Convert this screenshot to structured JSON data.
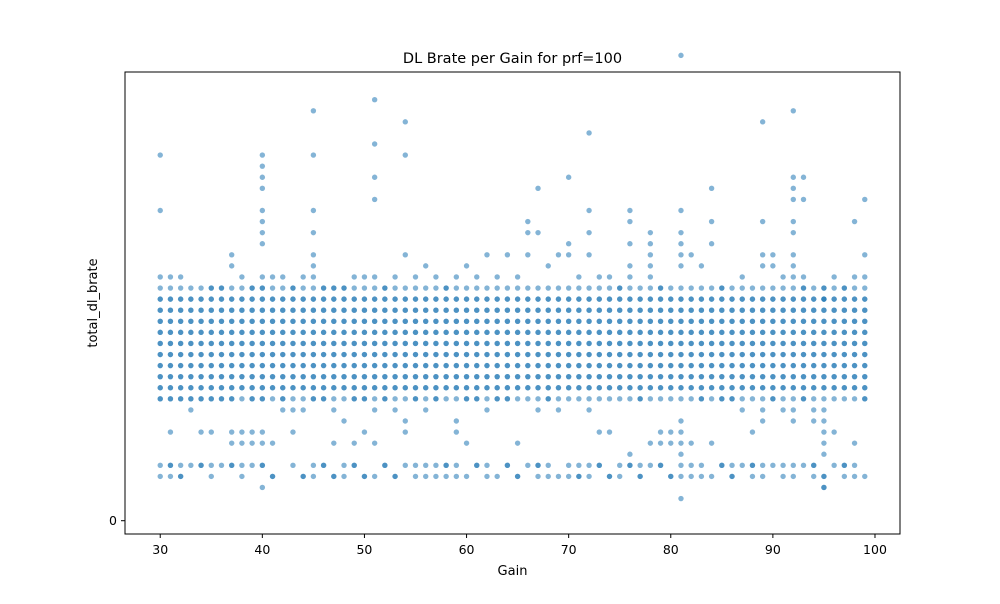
{
  "chart_data": {
    "type": "scatter",
    "title": "DL Brate per Gain for prf=100",
    "xlabel": "Gain",
    "ylabel": "total_dl_brate",
    "xlim": [
      26.55,
      102.45
    ],
    "ylim": [
      -0.12,
      4.05
    ],
    "x_ticks": [
      30,
      40,
      50,
      60,
      70,
      80,
      90,
      100
    ],
    "y_ticks": [
      0
    ],
    "grid": false,
    "legend": "none",
    "marker_color": "#1f77b4",
    "marker_alpha": 0.55,
    "gain_range": [
      30,
      99
    ],
    "dense_band_levels": [
      1.2,
      1.3,
      1.4,
      1.5,
      1.6,
      1.7,
      1.8,
      1.9,
      2.0
    ],
    "edge_band_levels": [
      1.1,
      2.1
    ],
    "common_low_levels": [
      0.4,
      0.5
    ],
    "points": [
      [
        30,
        2.2
      ],
      [
        30,
        3.3
      ],
      [
        30,
        2.8
      ],
      [
        30,
        0.4
      ],
      [
        30,
        0.5
      ],
      [
        30,
        1.1
      ],
      [
        31,
        0.8
      ],
      [
        31,
        2.2
      ],
      [
        31,
        1.1
      ],
      [
        31,
        0.4
      ],
      [
        31,
        0.5
      ],
      [
        32,
        2.2
      ],
      [
        32,
        0.4
      ],
      [
        32,
        0.5
      ],
      [
        32,
        1.1
      ],
      [
        33,
        1.0
      ],
      [
        33,
        1.1
      ],
      [
        33,
        0.5
      ],
      [
        34,
        0.8
      ],
      [
        34,
        0.5
      ],
      [
        34,
        1.1
      ],
      [
        35,
        0.8
      ],
      [
        35,
        0.5
      ],
      [
        35,
        1.1
      ],
      [
        35,
        2.1
      ],
      [
        36,
        0.5
      ],
      [
        36,
        1.1
      ],
      [
        36,
        2.1
      ],
      [
        37,
        2.3
      ],
      [
        37,
        2.4
      ],
      [
        37,
        0.7
      ],
      [
        37,
        0.8
      ],
      [
        37,
        0.5
      ],
      [
        37,
        1.1
      ],
      [
        38,
        0.8
      ],
      [
        38,
        0.7
      ],
      [
        38,
        2.2
      ],
      [
        38,
        0.5
      ],
      [
        39,
        0.7
      ],
      [
        39,
        0.8
      ],
      [
        39,
        0.5
      ],
      [
        39,
        1.1
      ],
      [
        39,
        2.1
      ],
      [
        40,
        3.3
      ],
      [
        40,
        3.2
      ],
      [
        40,
        3.1
      ],
      [
        40,
        3.0
      ],
      [
        40,
        2.8
      ],
      [
        40,
        2.7
      ],
      [
        40,
        2.6
      ],
      [
        40,
        2.5
      ],
      [
        40,
        2.2
      ],
      [
        40,
        0.8
      ],
      [
        40,
        0.7
      ],
      [
        40,
        0.3
      ],
      [
        40,
        0.5
      ],
      [
        40,
        1.1
      ],
      [
        40,
        2.1
      ],
      [
        41,
        2.2
      ],
      [
        41,
        0.7
      ],
      [
        41,
        0.4
      ],
      [
        42,
        1.0
      ],
      [
        42,
        1.1
      ],
      [
        42,
        2.2
      ],
      [
        43,
        0.8
      ],
      [
        43,
        1.0
      ],
      [
        43,
        2.1
      ],
      [
        44,
        2.2
      ],
      [
        44,
        1.0
      ],
      [
        44,
        0.4
      ],
      [
        45,
        3.7
      ],
      [
        45,
        3.3
      ],
      [
        45,
        2.8
      ],
      [
        45,
        2.6
      ],
      [
        45,
        2.4
      ],
      [
        45,
        2.3
      ],
      [
        45,
        2.2
      ],
      [
        45,
        0.5
      ],
      [
        45,
        0.4
      ],
      [
        45,
        1.1
      ],
      [
        46,
        0.5
      ],
      [
        46,
        1.1
      ],
      [
        46,
        2.1
      ],
      [
        47,
        0.7
      ],
      [
        47,
        1.0
      ],
      [
        47,
        0.4
      ],
      [
        47,
        2.1
      ],
      [
        48,
        0.4
      ],
      [
        48,
        0.5
      ],
      [
        48,
        0.9
      ],
      [
        48,
        2.1
      ],
      [
        49,
        0.7
      ],
      [
        49,
        1.1
      ],
      [
        49,
        0.5
      ],
      [
        49,
        2.2
      ],
      [
        50,
        0.8
      ],
      [
        50,
        2.2
      ],
      [
        50,
        0.4
      ],
      [
        50,
        1.1
      ],
      [
        51,
        3.8
      ],
      [
        51,
        3.4
      ],
      [
        51,
        3.1
      ],
      [
        51,
        2.9
      ],
      [
        51,
        2.2
      ],
      [
        51,
        0.7
      ],
      [
        51,
        1.0
      ],
      [
        51,
        0.4
      ],
      [
        52,
        0.5
      ],
      [
        52,
        2.1
      ],
      [
        52,
        1.1
      ],
      [
        53,
        0.4
      ],
      [
        53,
        1.0
      ],
      [
        53,
        2.2
      ],
      [
        54,
        3.6
      ],
      [
        54,
        3.3
      ],
      [
        54,
        2.4
      ],
      [
        54,
        0.9
      ],
      [
        54,
        0.8
      ],
      [
        54,
        0.5
      ],
      [
        55,
        0.4
      ],
      [
        55,
        2.2
      ],
      [
        55,
        1.1
      ],
      [
        56,
        0.5
      ],
      [
        56,
        2.3
      ],
      [
        56,
        1.0
      ],
      [
        57,
        0.4
      ],
      [
        57,
        0.5
      ],
      [
        57,
        2.2
      ],
      [
        57,
        1.1
      ],
      [
        58,
        0.4
      ],
      [
        58,
        0.5
      ],
      [
        58,
        2.1
      ],
      [
        59,
        0.9
      ],
      [
        59,
        0.8
      ],
      [
        59,
        0.5
      ],
      [
        59,
        2.2
      ],
      [
        60,
        0.4
      ],
      [
        60,
        0.7
      ],
      [
        60,
        2.3
      ],
      [
        60,
        1.1
      ],
      [
        61,
        0.5
      ],
      [
        61,
        2.2
      ],
      [
        61,
        1.1
      ],
      [
        62,
        0.5
      ],
      [
        62,
        2.4
      ],
      [
        62,
        1.0
      ],
      [
        63,
        0.4
      ],
      [
        63,
        2.2
      ],
      [
        63,
        1.1
      ],
      [
        64,
        0.5
      ],
      [
        64,
        2.4
      ],
      [
        64,
        1.1
      ],
      [
        65,
        0.7
      ],
      [
        65,
        0.4
      ],
      [
        65,
        2.2
      ],
      [
        66,
        2.7
      ],
      [
        66,
        2.6
      ],
      [
        66,
        0.5
      ],
      [
        66,
        2.4
      ],
      [
        67,
        3.0
      ],
      [
        67,
        2.6
      ],
      [
        67,
        0.4
      ],
      [
        67,
        0.5
      ],
      [
        67,
        1.0
      ],
      [
        68,
        0.5
      ],
      [
        68,
        2.3
      ],
      [
        68,
        1.1
      ],
      [
        69,
        0.4
      ],
      [
        69,
        2.4
      ],
      [
        69,
        1.0
      ],
      [
        70,
        3.1
      ],
      [
        70,
        2.5
      ],
      [
        70,
        0.4
      ],
      [
        70,
        2.4
      ],
      [
        71,
        0.4
      ],
      [
        71,
        0.5
      ],
      [
        71,
        2.2
      ],
      [
        72,
        3.5
      ],
      [
        72,
        2.8
      ],
      [
        72,
        2.6
      ],
      [
        72,
        2.4
      ],
      [
        72,
        0.5
      ],
      [
        72,
        0.4
      ],
      [
        72,
        1.0
      ],
      [
        73,
        0.5
      ],
      [
        73,
        0.8
      ],
      [
        73,
        2.2
      ],
      [
        74,
        0.8
      ],
      [
        74,
        2.2
      ],
      [
        74,
        0.4
      ],
      [
        75,
        0.4
      ],
      [
        75,
        0.5
      ],
      [
        75,
        2.1
      ],
      [
        76,
        2.8
      ],
      [
        76,
        2.7
      ],
      [
        76,
        2.5
      ],
      [
        76,
        2.3
      ],
      [
        76,
        2.2
      ],
      [
        76,
        0.6
      ],
      [
        76,
        0.5
      ],
      [
        77,
        0.5
      ],
      [
        77,
        0.4
      ],
      [
        77,
        1.1
      ],
      [
        78,
        2.6
      ],
      [
        78,
        2.5
      ],
      [
        78,
        2.4
      ],
      [
        78,
        2.3
      ],
      [
        78,
        2.2
      ],
      [
        78,
        0.7
      ],
      [
        78,
        0.5
      ],
      [
        79,
        0.7
      ],
      [
        79,
        0.8
      ],
      [
        79,
        0.5
      ],
      [
        79,
        2.1
      ],
      [
        80,
        0.4
      ],
      [
        80,
        0.8
      ],
      [
        80,
        0.7
      ],
      [
        81,
        4.2
      ],
      [
        81,
        2.8
      ],
      [
        81,
        2.6
      ],
      [
        81,
        2.5
      ],
      [
        81,
        2.4
      ],
      [
        81,
        2.3
      ],
      [
        81,
        0.9
      ],
      [
        81,
        0.8
      ],
      [
        81,
        0.7
      ],
      [
        81,
        0.6
      ],
      [
        81,
        0.5
      ],
      [
        81,
        0.4
      ],
      [
        81,
        0.2
      ],
      [
        82,
        2.4
      ],
      [
        82,
        0.4
      ],
      [
        82,
        0.7
      ],
      [
        83,
        2.3
      ],
      [
        83,
        0.5
      ],
      [
        83,
        1.1
      ],
      [
        84,
        3.0
      ],
      [
        84,
        2.7
      ],
      [
        84,
        2.5
      ],
      [
        84,
        0.7
      ],
      [
        84,
        0.4
      ],
      [
        85,
        0.5
      ],
      [
        85,
        1.1
      ],
      [
        85,
        2.1
      ],
      [
        86,
        0.4
      ],
      [
        86,
        0.5
      ],
      [
        86,
        1.1
      ],
      [
        87,
        0.5
      ],
      [
        87,
        2.2
      ],
      [
        87,
        1.0
      ],
      [
        88,
        0.5
      ],
      [
        88,
        0.8
      ],
      [
        88,
        0.4
      ],
      [
        89,
        3.6
      ],
      [
        89,
        2.7
      ],
      [
        89,
        2.4
      ],
      [
        89,
        2.3
      ],
      [
        89,
        0.5
      ],
      [
        89,
        1.0
      ],
      [
        89,
        0.9
      ],
      [
        90,
        2.3
      ],
      [
        90,
        2.4
      ],
      [
        90,
        0.5
      ],
      [
        90,
        1.1
      ],
      [
        91,
        0.4
      ],
      [
        91,
        2.2
      ],
      [
        91,
        1.0
      ],
      [
        92,
        3.7
      ],
      [
        92,
        3.1
      ],
      [
        92,
        3.0
      ],
      [
        92,
        2.9
      ],
      [
        92,
        2.7
      ],
      [
        92,
        2.6
      ],
      [
        92,
        2.4
      ],
      [
        92,
        2.3
      ],
      [
        92,
        2.2
      ],
      [
        92,
        0.9
      ],
      [
        92,
        0.5
      ],
      [
        92,
        1.0
      ],
      [
        93,
        3.1
      ],
      [
        93,
        2.9
      ],
      [
        93,
        2.2
      ],
      [
        93,
        2.1
      ],
      [
        93,
        0.5
      ],
      [
        93,
        1.1
      ],
      [
        94,
        0.4
      ],
      [
        94,
        0.5
      ],
      [
        94,
        0.9
      ],
      [
        94,
        1.0
      ],
      [
        95,
        0.3
      ],
      [
        95,
        0.3
      ],
      [
        95,
        0.4
      ],
      [
        95,
        0.6
      ],
      [
        95,
        0.7
      ],
      [
        95,
        0.8
      ],
      [
        95,
        0.9
      ],
      [
        95,
        1.0
      ],
      [
        95,
        2.1
      ],
      [
        95,
        2.0
      ],
      [
        96,
        0.5
      ],
      [
        96,
        0.8
      ],
      [
        96,
        2.2
      ],
      [
        97,
        0.5
      ],
      [
        97,
        0.4
      ],
      [
        97,
        2.1
      ],
      [
        98,
        2.7
      ],
      [
        98,
        0.7
      ],
      [
        98,
        0.5
      ],
      [
        98,
        2.2
      ],
      [
        99,
        2.9
      ],
      [
        99,
        2.4
      ],
      [
        99,
        2.2
      ],
      [
        99,
        0.4
      ],
      [
        99,
        1.1
      ]
    ]
  }
}
